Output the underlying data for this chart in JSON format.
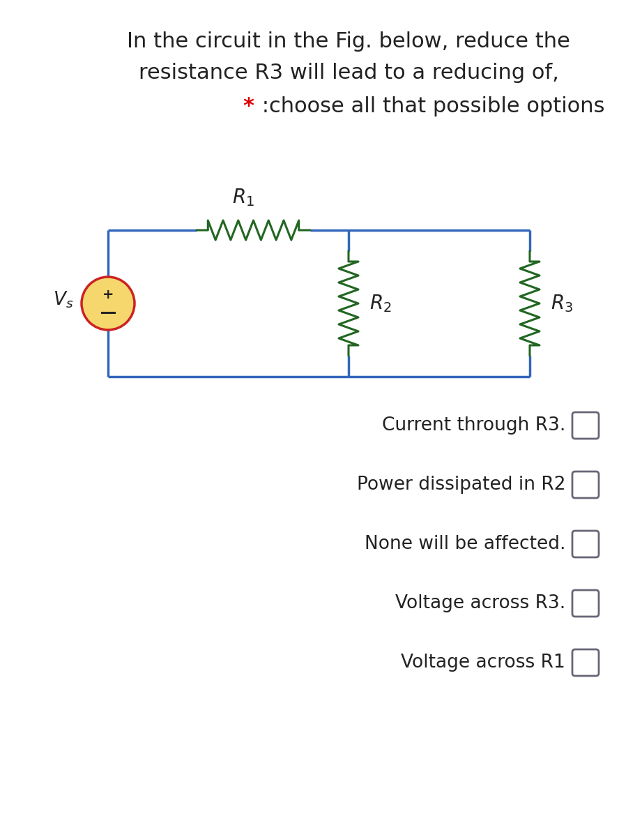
{
  "title_line1": "In the circuit in the Fig. below, reduce the",
  "title_line2": "resistance R3 will lead to a reducing of,",
  "subtitle_star": "*",
  "subtitle_rest": " :choose all that possible options",
  "subtitle_star_color": "#dd0000",
  "circuit_line_color": "#3366bb",
  "resistor_color": "#226622",
  "source_fill_color": "#f5d76e",
  "source_border_color": "#cc2222",
  "options": [
    "Current through R3.",
    "Power dissipated in R2",
    "None will be affected.",
    "Voltage across R3.",
    "Voltage across R1"
  ],
  "bg_color": "#ffffff",
  "text_color": "#222222",
  "checkbox_color": "#666677"
}
